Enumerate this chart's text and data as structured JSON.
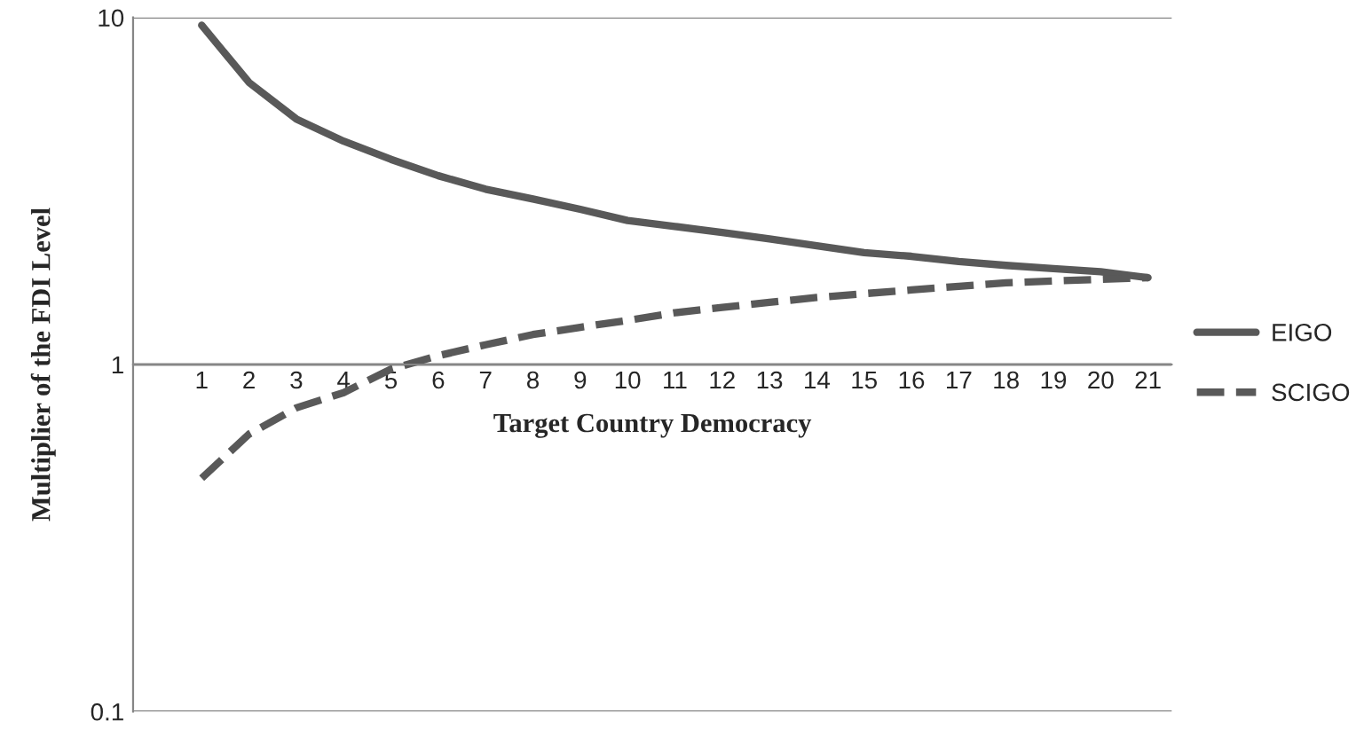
{
  "chart_data": {
    "type": "line",
    "xlabel": "Target Country Democracy",
    "ylabel": "Multiplier of the FDI Level",
    "categories": [
      "1",
      "2",
      "3",
      "4",
      "5",
      "6",
      "7",
      "8",
      "9",
      "10",
      "11",
      "12",
      "13",
      "14",
      "15",
      "16",
      "17",
      "18",
      "19",
      "20",
      "21"
    ],
    "series": [
      {
        "name": "EIGO",
        "color": "#595959",
        "line_style": "solid",
        "values": [
          9.5,
          6.5,
          5.1,
          4.4,
          3.9,
          3.5,
          3.2,
          3.0,
          2.8,
          2.6,
          2.5,
          2.4,
          2.3,
          2.2,
          2.1,
          2.05,
          1.98,
          1.93,
          1.89,
          1.85,
          1.78
        ]
      },
      {
        "name": "SCIGO",
        "color": "#595959",
        "line_style": "dashed",
        "values": [
          0.47,
          0.63,
          0.75,
          0.83,
          0.97,
          1.06,
          1.14,
          1.22,
          1.28,
          1.34,
          1.41,
          1.46,
          1.51,
          1.56,
          1.6,
          1.64,
          1.68,
          1.72,
          1.74,
          1.76,
          1.78
        ]
      }
    ],
    "log": "y",
    "ylim": [
      0.1,
      10
    ],
    "yticks": [
      0.1,
      1,
      10
    ],
    "grid": "y",
    "legend": "right",
    "marker": "none"
  }
}
